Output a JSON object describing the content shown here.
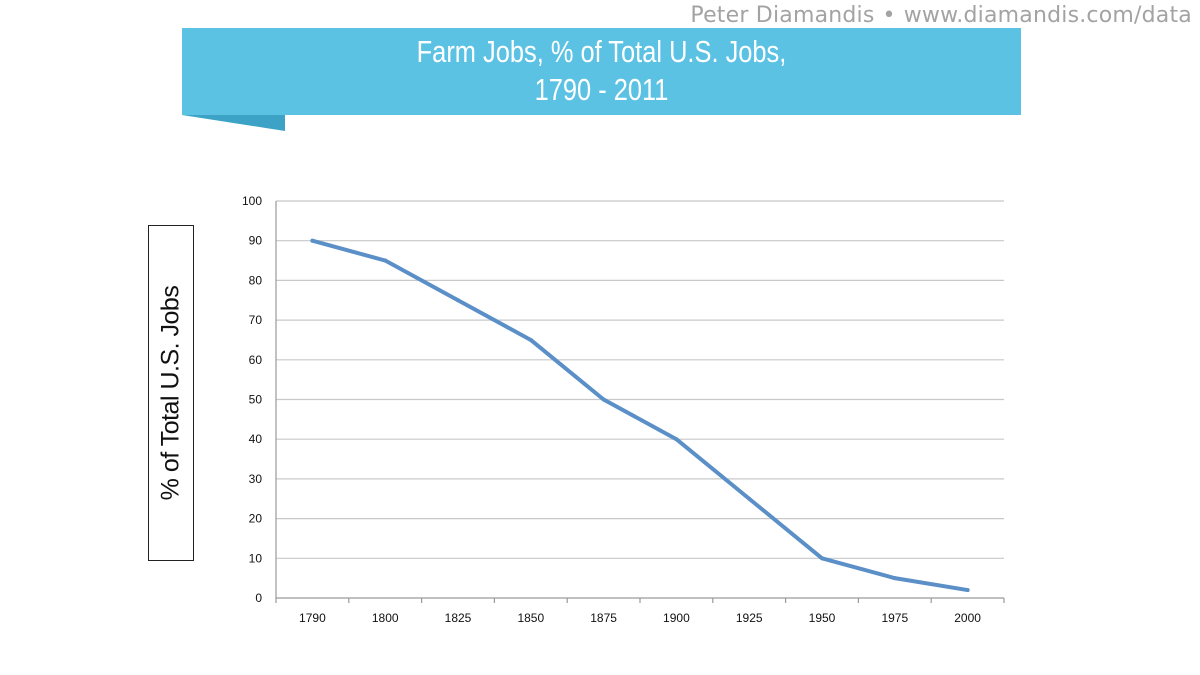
{
  "credit": {
    "author": "Peter Diamandis",
    "separator": "•",
    "url": "www.diamandis.com/data"
  },
  "colors": {
    "banner": "#5bc2e4",
    "banner_fold": "#3ca3c7",
    "line": "#5b8fc7",
    "grid": "#c8c8c8"
  },
  "chart_data": {
    "type": "line",
    "title_lines": [
      "Farm Jobs, % of Total U.S. Jobs,",
      "1790 - 2011"
    ],
    "xlabel": "",
    "ylabel": "% of Total U.S. Jobs",
    "categories": [
      "1790",
      "1800",
      "1825",
      "1850",
      "1875",
      "1900",
      "1925",
      "1950",
      "1975",
      "2000"
    ],
    "series": [
      {
        "values": [
          90,
          85,
          75,
          65,
          50,
          40,
          25,
          10,
          5,
          2
        ]
      }
    ],
    "ylim": [
      0,
      100
    ],
    "yticks": [
      0,
      10,
      20,
      30,
      40,
      50,
      60,
      70,
      80,
      90,
      100
    ],
    "grid": true,
    "legend": "none"
  }
}
